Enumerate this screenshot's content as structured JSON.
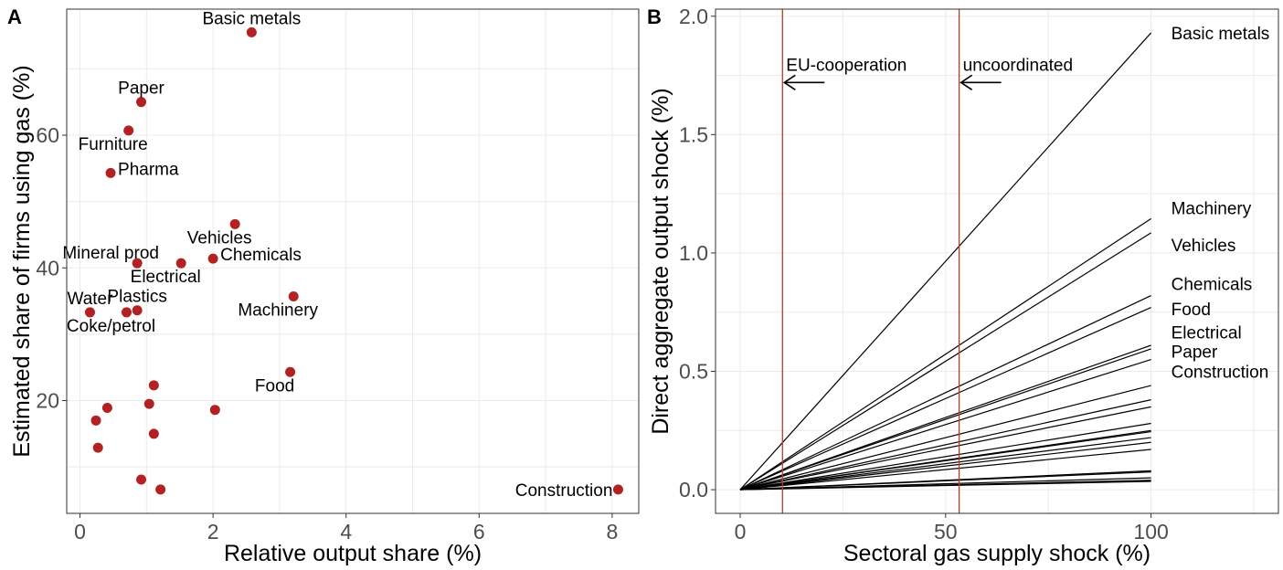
{
  "colors": {
    "point": "#b22222",
    "vline": "#c0392b",
    "line": "#000000"
  },
  "chart_data": [
    {
      "panel": "A",
      "type": "scatter",
      "xlabel": "Relative output share (%)",
      "ylabel": "Estimated share of firms using gas (%)",
      "xlim": [
        -0.2,
        8.4
      ],
      "ylim": [
        3,
        79
      ],
      "xticks": [
        0,
        2,
        4,
        6,
        8
      ],
      "yticks": [
        20,
        40,
        60
      ],
      "grid": true,
      "points": [
        {
          "x": 2.58,
          "y": 75.5,
          "label": "Basic metals",
          "pos": "above"
        },
        {
          "x": 0.92,
          "y": 65.0,
          "label": "Paper",
          "pos": "above"
        },
        {
          "x": 0.73,
          "y": 60.7,
          "label": "Furniture",
          "pos": "below-left"
        },
        {
          "x": 0.46,
          "y": 54.3,
          "label": "Pharma",
          "pos": "right"
        },
        {
          "x": 2.33,
          "y": 46.6,
          "label": "Vehicles",
          "pos": "below-left"
        },
        {
          "x": 2.0,
          "y": 41.4,
          "label": "Chemicals",
          "pos": "right"
        },
        {
          "x": 0.86,
          "y": 40.7,
          "label": "Mineral prod",
          "pos": "above-left"
        },
        {
          "x": 1.52,
          "y": 40.7,
          "label": "Electrical",
          "pos": "below-left"
        },
        {
          "x": 3.21,
          "y": 35.7,
          "label": "Machinery",
          "pos": "below-left"
        },
        {
          "x": 0.86,
          "y": 33.6,
          "label": "Plastics",
          "pos": "above"
        },
        {
          "x": 0.15,
          "y": 33.3,
          "label": "Water",
          "pos": "above"
        },
        {
          "x": 0.7,
          "y": 33.3,
          "label": "Coke/petrol",
          "pos": "below-left"
        },
        {
          "x": 3.16,
          "y": 24.3,
          "label": "Food",
          "pos": "below-left"
        },
        {
          "x": 8.09,
          "y": 6.6,
          "label": "Construction",
          "pos": "left"
        },
        {
          "x": 1.11,
          "y": 22.3,
          "label": "",
          "pos": "none"
        },
        {
          "x": 1.04,
          "y": 19.5,
          "label": "",
          "pos": "none"
        },
        {
          "x": 2.03,
          "y": 18.6,
          "label": "",
          "pos": "none"
        },
        {
          "x": 0.41,
          "y": 18.9,
          "label": "",
          "pos": "none"
        },
        {
          "x": 0.24,
          "y": 17.0,
          "label": "",
          "pos": "none"
        },
        {
          "x": 1.11,
          "y": 15.0,
          "label": "",
          "pos": "none"
        },
        {
          "x": 0.27,
          "y": 12.9,
          "label": "",
          "pos": "none"
        },
        {
          "x": 0.92,
          "y": 8.1,
          "label": "",
          "pos": "none"
        },
        {
          "x": 1.21,
          "y": 6.6,
          "label": "",
          "pos": "none"
        }
      ]
    },
    {
      "panel": "B",
      "type": "line",
      "xlabel": "Sectoral gas supply shock (%)",
      "ylabel": "Direct aggregate output shock (%)",
      "xlim": [
        -6,
        131
      ],
      "ylim": [
        -0.1,
        2.03
      ],
      "xticks": [
        0,
        50,
        100
      ],
      "yticks": [
        0.0,
        0.5,
        1.0,
        1.5,
        2.0
      ],
      "ytick_labels": [
        "0.0",
        "0.5",
        "1.0",
        "1.5",
        "2.0"
      ],
      "grid": true,
      "x_range": [
        0,
        100
      ],
      "series": [
        {
          "name": "Basic metals",
          "end_value": 1.93
        },
        {
          "name": "Machinery",
          "end_value": 1.145
        },
        {
          "name": "Vehicles",
          "end_value": 1.085
        },
        {
          "name": "Chemicals",
          "end_value": 0.82
        },
        {
          "name": "Food",
          "end_value": 0.77
        },
        {
          "name": "Electrical",
          "end_value": 0.61
        },
        {
          "name": "Paper",
          "end_value": 0.595
        },
        {
          "name": "Construction",
          "end_value": 0.55
        },
        {
          "name": "",
          "end_value": 0.44
        },
        {
          "name": "",
          "end_value": 0.38
        },
        {
          "name": "",
          "end_value": 0.35
        },
        {
          "name": "",
          "end_value": 0.28
        },
        {
          "name": "",
          "end_value": 0.25
        },
        {
          "name": "",
          "end_value": 0.245
        },
        {
          "name": "",
          "end_value": 0.22
        },
        {
          "name": "",
          "end_value": 0.2
        },
        {
          "name": "",
          "end_value": 0.17
        },
        {
          "name": "",
          "end_value": 0.08
        },
        {
          "name": "",
          "end_value": 0.075
        },
        {
          "name": "",
          "end_value": 0.05
        },
        {
          "name": "",
          "end_value": 0.04
        },
        {
          "name": "",
          "end_value": 0.035
        }
      ],
      "labels": [
        {
          "name": "Basic metals",
          "value": 1.93
        },
        {
          "name": "Machinery",
          "value": 1.19
        },
        {
          "name": "Vehicles",
          "value": 1.035
        },
        {
          "name": "Chemicals",
          "value": 0.87
        },
        {
          "name": "Food",
          "value": 0.765
        },
        {
          "name": "Electrical",
          "value": 0.665
        },
        {
          "name": "Paper",
          "value": 0.585
        },
        {
          "name": "Construction",
          "value": 0.5
        }
      ],
      "vlines": [
        {
          "x": 10.3,
          "label": "EU-cooperation"
        },
        {
          "x": 53.3,
          "label": "uncoordinated"
        }
      ]
    }
  ]
}
